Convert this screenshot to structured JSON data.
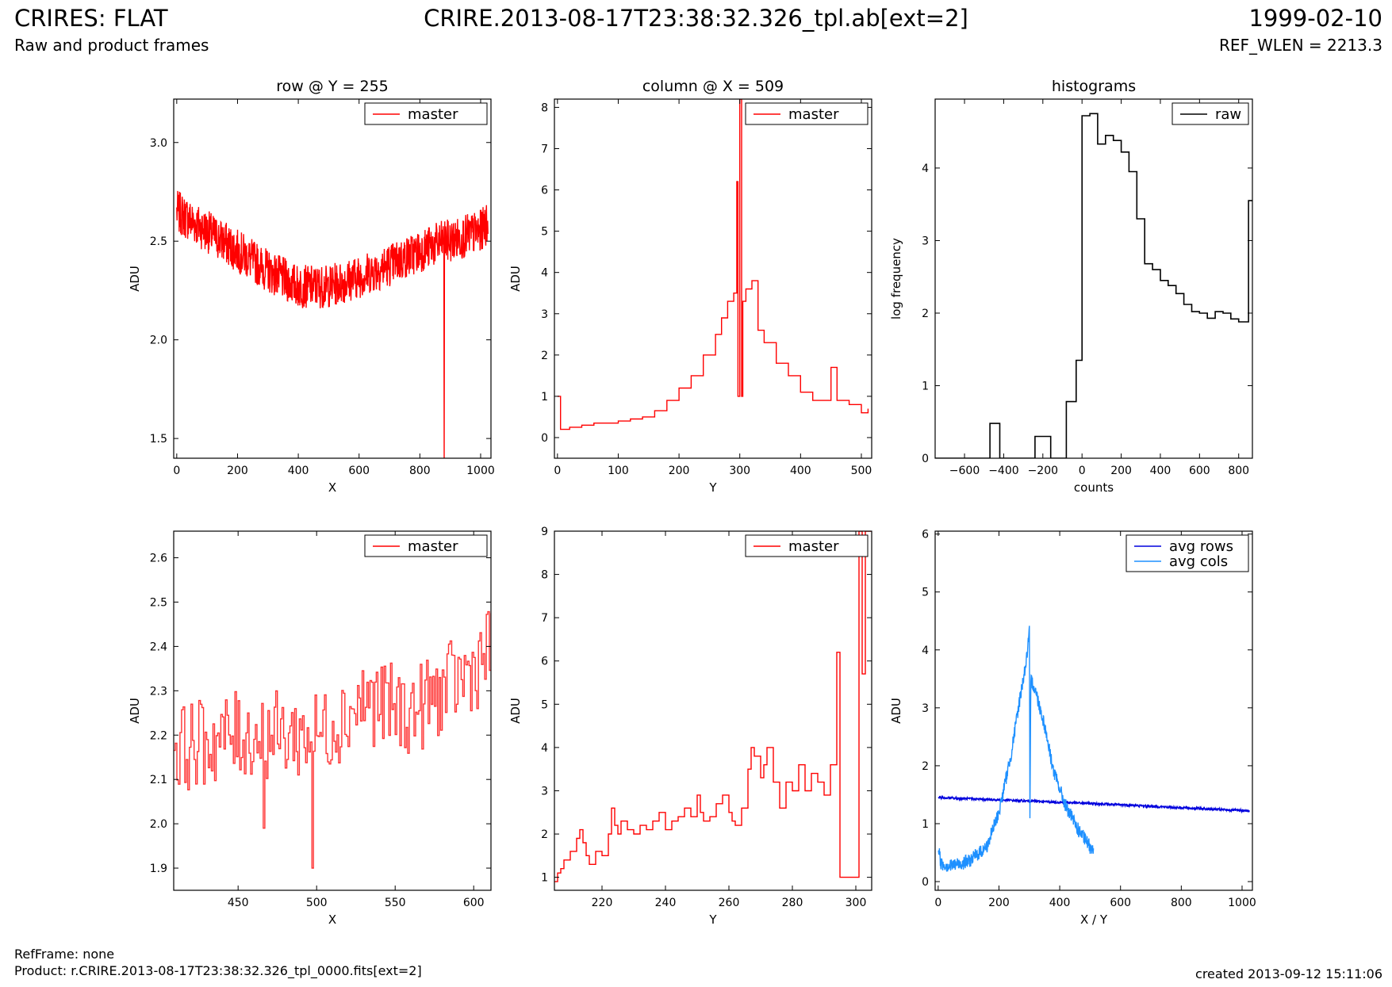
{
  "header": {
    "title": "CRIRES: FLAT",
    "subtitle": "Raw and product frames",
    "file": "CRIRE.2013-08-17T23:38:32.326_tpl.ab[ext=2]",
    "date": "1999-02-10",
    "ref_wlen": "REF_WLEN = 2213.3"
  },
  "footer": {
    "ref_frame": "RefFrame: none",
    "product": "Product: r.CRIRE.2013-08-17T23:38:32.326_tpl_0000.fits[ext=2]",
    "created": "created 2013-09-12 15:11:06"
  },
  "colors": {
    "red": "#ff0000",
    "black": "#000000",
    "blue": "#0000dd",
    "lightblue": "#1e90ff"
  },
  "chart_data": [
    {
      "id": "row",
      "type": "line",
      "title": "row @ Y = 255",
      "xlabel": "X",
      "ylabel": "ADU",
      "xlim": [
        -10,
        1034
      ],
      "ylim": [
        1.4,
        3.22
      ],
      "xticks": [
        0,
        200,
        400,
        600,
        800,
        1000
      ],
      "yticks": [
        1.5,
        2.0,
        2.5,
        3.0
      ],
      "ytick_labels": [
        "1.5",
        "2.0",
        "2.5",
        "3.0"
      ],
      "legend": {
        "position": "top-right",
        "entries": [
          {
            "label": "master",
            "color": "#ff0000"
          }
        ]
      },
      "series": [
        {
          "name": "master",
          "color": "#ff0000",
          "style": "noisy",
          "trend_x": [
            0,
            100,
            200,
            300,
            400,
            500,
            600,
            700,
            800,
            880,
            900,
            1000,
            1024
          ],
          "trend_y": [
            2.65,
            2.55,
            2.45,
            2.35,
            2.27,
            2.27,
            2.32,
            2.38,
            2.45,
            2.5,
            2.5,
            2.55,
            2.6
          ],
          "noise": 0.11,
          "n": 1024,
          "dips": [
            {
              "x": 880,
              "y": 1.4
            }
          ]
        }
      ]
    },
    {
      "id": "column",
      "type": "line",
      "title": "column @ X = 509",
      "xlabel": "Y",
      "ylabel": "ADU",
      "xlim": [
        -5,
        517
      ],
      "ylim": [
        -0.5,
        8.2
      ],
      "xticks": [
        0,
        100,
        200,
        300,
        400,
        500
      ],
      "yticks": [
        0,
        1,
        2,
        3,
        4,
        5,
        6,
        7,
        8
      ],
      "ytick_labels": [
        "0",
        "1",
        "2",
        "3",
        "4",
        "5",
        "6",
        "7",
        "8"
      ],
      "legend": {
        "position": "top-right",
        "entries": [
          {
            "label": "master",
            "color": "#ff0000"
          }
        ]
      },
      "series": [
        {
          "name": "master",
          "color": "#ff0000",
          "style": "step",
          "x": [
            0,
            5,
            10,
            20,
            30,
            40,
            50,
            60,
            80,
            100,
            120,
            140,
            160,
            180,
            200,
            220,
            240,
            260,
            270,
            280,
            290,
            295,
            297,
            300,
            303,
            305,
            310,
            320,
            330,
            340,
            360,
            380,
            400,
            420,
            440,
            450,
            460,
            480,
            500,
            511
          ],
          "y": [
            1.0,
            0.2,
            0.2,
            0.25,
            0.25,
            0.3,
            0.3,
            0.35,
            0.35,
            0.4,
            0.45,
            0.5,
            0.65,
            0.9,
            1.2,
            1.5,
            2.0,
            2.5,
            2.9,
            3.3,
            3.5,
            6.2,
            1.0,
            8.2,
            1.0,
            3.3,
            3.6,
            3.8,
            2.6,
            2.3,
            1.8,
            1.5,
            1.1,
            0.9,
            0.9,
            1.7,
            0.9,
            0.8,
            0.6,
            0.7
          ]
        }
      ]
    },
    {
      "id": "histograms",
      "type": "histogram",
      "title": "histograms",
      "xlabel": "counts",
      "ylabel": "log frequency",
      "xlim": [
        -750,
        870
      ],
      "ylim": [
        0,
        4.95
      ],
      "xticks": [
        -600,
        -400,
        -200,
        0,
        200,
        400,
        600,
        800
      ],
      "xtick_labels": [
        "−600",
        "−400",
        "−200",
        "0",
        "200",
        "400",
        "600",
        "800"
      ],
      "yticks": [
        0,
        1,
        2,
        3,
        4
      ],
      "ytick_labels": [
        "0",
        "1",
        "2",
        "3",
        "4"
      ],
      "legend": {
        "position": "top-right",
        "entries": [
          {
            "label": "raw",
            "color": "#000000"
          }
        ]
      },
      "series": [
        {
          "name": "raw",
          "color": "#000000",
          "edges": [
            -750,
            -470,
            -420,
            -240,
            -160,
            -130,
            -80,
            -30,
            0,
            40,
            80,
            120,
            160,
            200,
            240,
            280,
            320,
            360,
            400,
            440,
            480,
            520,
            560,
            600,
            640,
            680,
            720,
            760,
            800,
            850,
            870
          ],
          "counts": [
            0,
            0.48,
            0,
            0.3,
            0,
            0,
            0.78,
            1.35,
            4.72,
            4.75,
            4.33,
            4.45,
            4.38,
            4.22,
            3.95,
            3.3,
            2.68,
            2.6,
            2.45,
            2.38,
            2.27,
            2.12,
            2.02,
            2.0,
            1.93,
            2.02,
            2.0,
            1.92,
            1.88,
            3.55
          ]
        }
      ]
    },
    {
      "id": "row-zoom",
      "type": "line",
      "title": "",
      "xlabel": "X",
      "ylabel": "ADU",
      "xlim": [
        409,
        611
      ],
      "ylim": [
        1.85,
        2.66
      ],
      "xticks": [
        450,
        500,
        550,
        600
      ],
      "yticks": [
        1.9,
        2.0,
        2.1,
        2.2,
        2.3,
        2.4,
        2.5,
        2.6
      ],
      "ytick_labels": [
        "1.9",
        "2.0",
        "2.1",
        "2.2",
        "2.3",
        "2.4",
        "2.5",
        "2.6"
      ],
      "legend": {
        "position": "top-right",
        "entries": [
          {
            "label": "master",
            "color": "#ff0000"
          }
        ]
      },
      "series": [
        {
          "name": "master",
          "color": "#ff3333",
          "style": "noisy-step",
          "trend_x": [
            409,
            450,
            500,
            530,
            560,
            600,
            611
          ],
          "trend_y": [
            2.17,
            2.2,
            2.2,
            2.28,
            2.25,
            2.35,
            2.4
          ],
          "noise": 0.1,
          "n": 202,
          "dips": [
            {
              "x": 497,
              "y": 1.9
            },
            {
              "x": 466,
              "y": 1.99
            }
          ]
        }
      ]
    },
    {
      "id": "column-zoom",
      "type": "line",
      "title": "",
      "xlabel": "Y",
      "ylabel": "ADU",
      "xlim": [
        205,
        305
      ],
      "ylim": [
        0.7,
        9.0
      ],
      "xticks": [
        220,
        240,
        260,
        280,
        300
      ],
      "yticks": [
        1,
        2,
        3,
        4,
        5,
        6,
        7,
        8,
        9
      ],
      "ytick_labels": [
        "1",
        "2",
        "3",
        "4",
        "5",
        "6",
        "7",
        "8",
        "9"
      ],
      "legend": {
        "position": "top-right",
        "entries": [
          {
            "label": "master",
            "color": "#ff0000"
          }
        ]
      },
      "series": [
        {
          "name": "master",
          "color": "#ff0000",
          "style": "step",
          "x": [
            205,
            206,
            207,
            208,
            210,
            212,
            213,
            214,
            215,
            216,
            218,
            220,
            222,
            223,
            224,
            225,
            226,
            228,
            230,
            232,
            234,
            236,
            238,
            240,
            242,
            244,
            246,
            248,
            250,
            251,
            252,
            254,
            256,
            258,
            260,
            261,
            262,
            264,
            266,
            267,
            268,
            270,
            271,
            272,
            274,
            276,
            278,
            280,
            282,
            284,
            286,
            288,
            290,
            292,
            294,
            295,
            296,
            300,
            301,
            302,
            303,
            305
          ],
          "y": [
            0.9,
            1.1,
            1.2,
            1.4,
            1.6,
            1.9,
            2.1,
            1.8,
            1.5,
            1.3,
            1.6,
            1.5,
            2.0,
            2.6,
            2.2,
            2.0,
            2.3,
            2.1,
            2.0,
            2.2,
            2.1,
            2.3,
            2.5,
            2.1,
            2.3,
            2.4,
            2.6,
            2.4,
            2.9,
            2.5,
            2.3,
            2.4,
            2.7,
            2.9,
            2.5,
            2.3,
            2.2,
            2.6,
            3.5,
            4.0,
            3.8,
            3.3,
            3.6,
            4.0,
            3.2,
            2.6,
            3.2,
            3.0,
            3.6,
            3.0,
            3.4,
            3.2,
            2.9,
            3.6,
            6.2,
            1.0,
            1.0,
            1.0,
            9.0,
            5.7,
            9.0,
            9.0
          ]
        }
      ]
    },
    {
      "id": "averages",
      "type": "line",
      "title": "",
      "xlabel": "X / Y",
      "ylabel": "ADU",
      "xlim": [
        -10,
        1034
      ],
      "ylim": [
        -0.15,
        6.05
      ],
      "xticks": [
        0,
        200,
        400,
        600,
        800,
        1000
      ],
      "yticks": [
        0,
        1,
        2,
        3,
        4,
        5,
        6
      ],
      "ytick_labels": [
        "0",
        "1",
        "2",
        "3",
        "4",
        "5",
        "6"
      ],
      "legend": {
        "position": "top-right",
        "entries": [
          {
            "label": "avg rows",
            "color": "#0000dd"
          },
          {
            "label": "avg cols",
            "color": "#1e90ff"
          }
        ]
      },
      "series": [
        {
          "name": "avg rows",
          "color": "#0000dd",
          "style": "noisy",
          "trend_x": [
            0,
            500,
            1024
          ],
          "trend_y": [
            1.45,
            1.35,
            1.22
          ],
          "noise": 0.02,
          "n": 1024
        },
        {
          "name": "avg cols",
          "color": "#1e90ff",
          "style": "noisy",
          "trend_x": [
            0,
            10,
            40,
            100,
            160,
            200,
            240,
            270,
            290,
            300,
            302,
            305,
            320,
            350,
            380,
            420,
            460,
            500,
            511
          ],
          "trend_y": [
            0.6,
            0.3,
            0.27,
            0.35,
            0.6,
            1.2,
            2.2,
            3.2,
            3.8,
            4.3,
            1.0,
            3.5,
            3.3,
            2.7,
            1.9,
            1.3,
            0.9,
            0.6,
            0.6
          ],
          "noise": 0.12,
          "n": 511
        }
      ]
    }
  ]
}
